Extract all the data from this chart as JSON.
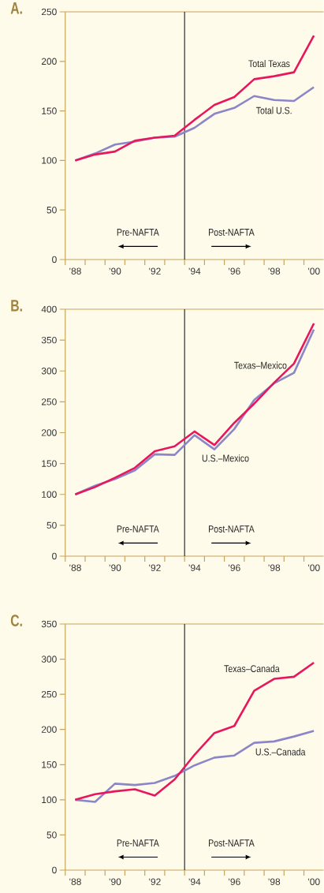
{
  "chart_data": [
    {
      "type": "line",
      "title": "A.",
      "x": [
        1988,
        1989,
        1990,
        1991,
        1992,
        1993,
        1994,
        1995,
        1996,
        1997,
        1998,
        1999,
        2000
      ],
      "series": [
        {
          "name": "Total Texas",
          "color": "#e8175d",
          "values": [
            100,
            106,
            109,
            120,
            123,
            125,
            141,
            156,
            164,
            182,
            185,
            189,
            226
          ]
        },
        {
          "name": "Total U.S.",
          "color": "#8b86c8",
          "values": [
            100,
            107,
            116,
            119,
            123,
            124,
            133,
            147,
            153,
            165,
            161,
            160,
            174
          ]
        }
      ],
      "xlim": [
        1987.5,
        2000.5
      ],
      "ylim": [
        0,
        250
      ],
      "yticks": [
        0,
        50,
        100,
        150,
        200,
        250
      ],
      "xticks": [
        {
          "value": 1987.5,
          "label": null
        },
        {
          "value": 1988.5,
          "label": null
        },
        {
          "value": 1989.5,
          "label": null
        },
        {
          "value": 1990.5,
          "label": null
        },
        {
          "value": 1991.5,
          "label": null
        },
        {
          "value": 1992.5,
          "label": null
        },
        {
          "value": 1993.5,
          "label": null
        },
        {
          "value": 1994.5,
          "label": null
        },
        {
          "value": 1995.5,
          "label": null
        },
        {
          "value": 1996.5,
          "label": null
        },
        {
          "value": 1997.5,
          "label": null
        },
        {
          "value": 1998.5,
          "label": null
        },
        {
          "value": 1999.5,
          "label": null
        },
        {
          "value": 1988,
          "label": "’88"
        },
        {
          "value": 1990,
          "label": "’90"
        },
        {
          "value": 1992,
          "label": "’92"
        },
        {
          "value": 1994,
          "label": "’94"
        },
        {
          "value": 1996,
          "label": "’96"
        },
        {
          "value": 1998,
          "label": "’98"
        },
        {
          "value": 2000,
          "label": "’00"
        }
      ],
      "ref_lines": [
        {
          "axis": "x",
          "value": 1993.5,
          "color": "#000000"
        }
      ],
      "annotations": [
        "Pre-NAFTA",
        "Post-NAFTA"
      ],
      "grid": false,
      "marker": "none",
      "line_style": "solid"
    },
    {
      "type": "line",
      "title": "B.",
      "x": [
        1988,
        1989,
        1990,
        1991,
        1992,
        1993,
        1994,
        1995,
        1996,
        1997,
        1998,
        1999,
        2000
      ],
      "series": [
        {
          "name": "Texas–Mexico",
          "color": "#e8175d",
          "values": [
            100,
            112,
            127,
            143,
            170,
            178,
            202,
            180,
            216,
            247,
            281,
            312,
            377
          ]
        },
        {
          "name": "U.S.–Mexico",
          "color": "#8b86c8",
          "values": [
            100,
            114,
            125,
            139,
            165,
            164,
            196,
            173,
            206,
            253,
            280,
            297,
            367
          ]
        }
      ],
      "xlim": [
        1987.5,
        2000.5
      ],
      "ylim": [
        0,
        400
      ],
      "yticks": [
        0,
        50,
        100,
        150,
        200,
        250,
        300,
        350,
        400
      ],
      "xticks": [
        {
          "value": 1987.5,
          "label": null
        },
        {
          "value": 1988.5,
          "label": null
        },
        {
          "value": 1989.5,
          "label": null
        },
        {
          "value": 1990.5,
          "label": null
        },
        {
          "value": 1991.5,
          "label": null
        },
        {
          "value": 1992.5,
          "label": null
        },
        {
          "value": 1993.5,
          "label": null
        },
        {
          "value": 1994.5,
          "label": null
        },
        {
          "value": 1995.5,
          "label": null
        },
        {
          "value": 1996.5,
          "label": null
        },
        {
          "value": 1997.5,
          "label": null
        },
        {
          "value": 1998.5,
          "label": null
        },
        {
          "value": 1999.5,
          "label": null
        },
        {
          "value": 1988,
          "label": "’88"
        },
        {
          "value": 1990,
          "label": "’90"
        },
        {
          "value": 1992,
          "label": "’92"
        },
        {
          "value": 1994,
          "label": "’94"
        },
        {
          "value": 1996,
          "label": "’96"
        },
        {
          "value": 1998,
          "label": "’98"
        },
        {
          "value": 2000,
          "label": "’00"
        }
      ],
      "ref_lines": [
        {
          "axis": "x",
          "value": 1993.5,
          "color": "#000000"
        }
      ],
      "annotations": [
        "Pre-NAFTA",
        "Post-NAFTA"
      ],
      "grid": false,
      "marker": "none",
      "line_style": "solid"
    },
    {
      "type": "line",
      "title": "C.",
      "x": [
        1988,
        1989,
        1990,
        1991,
        1992,
        1993,
        1994,
        1995,
        1996,
        1997,
        1998,
        1999,
        2000
      ],
      "series": [
        {
          "name": "Texas–Canada",
          "color": "#e8175d",
          "values": [
            100,
            108,
            112,
            115,
            106,
            129,
            164,
            195,
            205,
            255,
            272,
            275,
            295
          ]
        },
        {
          "name": "U.S.–Canada",
          "color": "#8b86c8",
          "values": [
            100,
            97,
            123,
            121,
            124,
            134,
            149,
            160,
            163,
            181,
            183,
            190,
            198
          ]
        }
      ],
      "xlim": [
        1987.5,
        2000.5
      ],
      "ylim": [
        0,
        350
      ],
      "yticks": [
        0,
        50,
        100,
        150,
        200,
        250,
        300,
        350
      ],
      "xticks": [
        {
          "value": 1987.5,
          "label": null
        },
        {
          "value": 1988.5,
          "label": null
        },
        {
          "value": 1989.5,
          "label": null
        },
        {
          "value": 1990.5,
          "label": null
        },
        {
          "value": 1991.5,
          "label": null
        },
        {
          "value": 1992.5,
          "label": null
        },
        {
          "value": 1993.5,
          "label": null
        },
        {
          "value": 1994.5,
          "label": null
        },
        {
          "value": 1995.5,
          "label": null
        },
        {
          "value": 1996.5,
          "label": null
        },
        {
          "value": 1997.5,
          "label": null
        },
        {
          "value": 1998.5,
          "label": null
        },
        {
          "value": 1999.5,
          "label": null
        },
        {
          "value": 1988,
          "label": "’88"
        },
        {
          "value": 1990,
          "label": "’90"
        },
        {
          "value": 1992,
          "label": "’92"
        },
        {
          "value": 1994,
          "label": "’94"
        },
        {
          "value": 1996,
          "label": "’96"
        },
        {
          "value": 1998,
          "label": "’98"
        },
        {
          "value": 2000,
          "label": "’00"
        }
      ],
      "ref_lines": [
        {
          "axis": "x",
          "value": 1993.5,
          "color": "#000000"
        }
      ],
      "annotations": [
        "Pre-NAFTA",
        "Post-NAFTA"
      ],
      "grid": false,
      "marker": "none",
      "line_style": "solid"
    }
  ]
}
